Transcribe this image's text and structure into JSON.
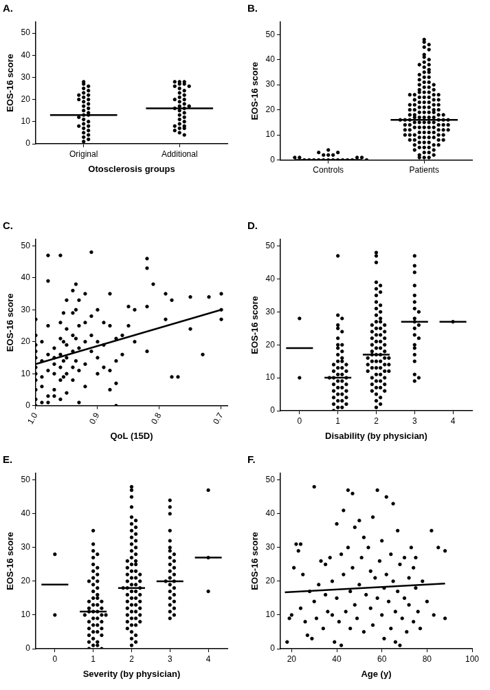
{
  "chart_data": [
    {
      "type": "strip",
      "title": "A.",
      "x_label": "Otosclerosis groups",
      "y_label": "EOS-16 score",
      "categories": [
        "Original",
        "Additional"
      ],
      "values": [
        [
          28,
          27,
          26,
          25,
          24,
          23,
          22,
          21,
          20,
          20,
          19,
          18,
          17,
          16,
          15,
          14,
          13,
          13,
          12,
          11,
          10,
          9,
          8,
          8,
          7,
          6,
          5,
          4,
          3,
          2,
          1,
          22
        ],
        [
          28,
          28,
          28,
          27,
          27,
          26,
          26,
          25,
          24,
          23,
          22,
          21,
          20,
          20,
          19,
          18,
          17,
          16,
          16,
          15,
          14,
          13,
          12,
          11,
          10,
          9,
          8,
          8,
          7,
          7,
          6,
          5,
          4,
          17
        ]
      ],
      "medians": [
        13,
        16
      ],
      "color": "#000000",
      "grid": false,
      "ylim": [
        0,
        55
      ],
      "yticks": [
        0,
        10,
        20,
        30,
        40,
        50
      ]
    },
    {
      "type": "strip",
      "title": "B.",
      "y_label": "EOS-16 score",
      "categories": [
        "Controls",
        "Patients"
      ],
      "values": [
        [
          0,
          0,
          0,
          0,
          0,
          0,
          0,
          0,
          0,
          0,
          0,
          1,
          1,
          1,
          1,
          2,
          2,
          2,
          3,
          3,
          4,
          0
        ],
        [
          48,
          47,
          46,
          45,
          44,
          42,
          41,
          40,
          39,
          38,
          38,
          37,
          36,
          35,
          35,
          34,
          33,
          33,
          32,
          31,
          31,
          30,
          30,
          29,
          29,
          28,
          28,
          27,
          27,
          27,
          26,
          26,
          26,
          26,
          25,
          25,
          25,
          24,
          24,
          24,
          23,
          23,
          23,
          22,
          22,
          22,
          22,
          21,
          21,
          21,
          20,
          20,
          20,
          20,
          19,
          19,
          19,
          19,
          18,
          18,
          18,
          18,
          17,
          17,
          17,
          17,
          17,
          16,
          16,
          16,
          16,
          16,
          16,
          15,
          15,
          15,
          15,
          15,
          14,
          14,
          14,
          14,
          14,
          13,
          13,
          13,
          13,
          13,
          12,
          12,
          12,
          12,
          12,
          11,
          11,
          11,
          11,
          10,
          10,
          10,
          10,
          10,
          9,
          9,
          9,
          9,
          8,
          8,
          8,
          8,
          7,
          7,
          7,
          6,
          6,
          6,
          5,
          5,
          5,
          4,
          4,
          3,
          3,
          2,
          2,
          1,
          1,
          1
        ]
      ],
      "medians": [
        0,
        16
      ],
      "color": "#000000",
      "grid": false,
      "ylim": [
        0,
        55
      ],
      "yticks": [
        0,
        10,
        20,
        30,
        40,
        50
      ]
    },
    {
      "type": "scatter",
      "title": "C.",
      "x_label": "QoL (15D)",
      "y_label": "EOS-16 score",
      "x": [
        1.0,
        1.0,
        1.0,
        1.0,
        1.0,
        1.0,
        1.0,
        1.0,
        1.0,
        1.0,
        1.0,
        0.99,
        0.99,
        0.99,
        0.99,
        0.99,
        0.98,
        0.98,
        0.98,
        0.98,
        0.98,
        0.98,
        0.98,
        0.97,
        0.97,
        0.97,
        0.97,
        0.97,
        0.97,
        0.96,
        0.96,
        0.96,
        0.96,
        0.96,
        0.96,
        0.96,
        0.955,
        0.955,
        0.955,
        0.955,
        0.95,
        0.95,
        0.95,
        0.95,
        0.95,
        0.95,
        0.94,
        0.94,
        0.94,
        0.94,
        0.94,
        0.94,
        0.935,
        0.935,
        0.935,
        0.935,
        0.93,
        0.93,
        0.93,
        0.93,
        0.93,
        0.92,
        0.92,
        0.92,
        0.92,
        0.92,
        0.91,
        0.91,
        0.91,
        0.91,
        0.9,
        0.9,
        0.9,
        0.9,
        0.89,
        0.89,
        0.89,
        0.88,
        0.88,
        0.88,
        0.88,
        0.87,
        0.87,
        0.87,
        0.87,
        0.86,
        0.86,
        0.85,
        0.85,
        0.84,
        0.84,
        0.82,
        0.82,
        0.82,
        0.82,
        0.81,
        0.79,
        0.79,
        0.78,
        0.78,
        0.77,
        0.75,
        0.75,
        0.73,
        0.72,
        0.7,
        0.7,
        0.7
      ],
      "values": [
        27,
        22,
        19,
        17,
        15,
        12,
        10,
        8,
        5,
        2,
        0,
        20,
        14,
        9,
        6,
        1,
        47,
        39,
        25,
        16,
        11,
        3,
        1,
        18,
        15,
        13,
        10,
        5,
        3,
        47,
        26,
        21,
        16,
        12,
        8,
        2,
        29,
        20,
        14,
        9,
        33,
        24,
        19,
        15,
        10,
        4,
        36,
        29,
        22,
        17,
        12,
        8,
        38,
        30,
        21,
        14,
        33,
        25,
        18,
        11,
        1,
        35,
        26,
        20,
        13,
        6,
        48,
        28,
        22,
        17,
        30,
        20,
        15,
        10,
        26,
        19,
        12,
        35,
        25,
        11,
        5,
        21,
        14,
        7,
        0,
        22,
        16,
        31,
        25,
        30,
        20,
        46,
        43,
        31,
        17,
        38,
        35,
        27,
        33,
        9,
        9,
        34,
        24,
        16,
        34,
        35,
        30,
        27
      ],
      "fit": {
        "x": [
          1.0,
          0.7
        ],
        "y": [
          13,
          30
        ]
      },
      "color": "#000000",
      "grid": false,
      "xlim": [
        1.0,
        0.69
      ],
      "xticks": [
        {
          "value": 1.0,
          "label": "1.0"
        },
        {
          "value": 0.9,
          "label": "0.9"
        },
        {
          "value": 0.8,
          "label": "0.8"
        },
        {
          "value": 0.7,
          "label": "0.7"
        }
      ],
      "ylim": [
        0,
        52
      ],
      "yticks": [
        0,
        10,
        20,
        30,
        40,
        50
      ]
    },
    {
      "type": "strip",
      "title": "D.",
      "x_label": "Disability (by physician)",
      "y_label": "EOS-16 score",
      "categories": [
        "0",
        "1",
        "2",
        "3",
        "4"
      ],
      "values": [
        [
          28,
          10
        ],
        [
          47,
          29,
          28,
          26,
          25,
          24,
          22,
          20,
          20,
          19,
          18,
          17,
          16,
          15,
          15,
          14,
          14,
          13,
          13,
          12,
          12,
          11,
          11,
          10,
          10,
          10,
          9,
          9,
          8,
          8,
          7,
          7,
          6,
          6,
          5,
          5,
          4,
          4,
          3,
          3,
          2,
          2,
          1,
          1,
          0
        ],
        [
          48,
          47,
          45,
          39,
          38,
          37,
          36,
          35,
          33,
          32,
          31,
          30,
          29,
          28,
          27,
          27,
          26,
          26,
          25,
          25,
          24,
          24,
          23,
          23,
          22,
          22,
          21,
          21,
          20,
          20,
          19,
          19,
          18,
          18,
          17,
          17,
          17,
          16,
          16,
          16,
          15,
          15,
          15,
          14,
          14,
          14,
          13,
          13,
          13,
          12,
          12,
          12,
          11,
          11,
          10,
          10,
          9,
          9,
          8,
          8,
          7,
          7,
          6,
          6,
          5,
          4,
          3,
          2,
          1
        ],
        [
          47,
          44,
          42,
          38,
          35,
          33,
          31,
          30,
          28,
          27,
          26,
          25,
          23,
          22,
          20,
          19,
          17,
          15,
          11,
          10,
          9
        ],
        [
          27
        ]
      ],
      "medians": [
        19,
        10,
        17,
        27,
        27
      ],
      "color": "#000000",
      "grid": false,
      "ylim": [
        0,
        52
      ],
      "yticks": [
        0,
        10,
        20,
        30,
        40,
        50
      ]
    },
    {
      "type": "strip",
      "title": "E.",
      "x_label": "Severity (by physician)",
      "y_label": "EOS-16 score",
      "categories": [
        "0",
        "1",
        "2",
        "3",
        "4"
      ],
      "values": [
        [
          28,
          10
        ],
        [
          35,
          31,
          29,
          28,
          27,
          25,
          24,
          23,
          22,
          21,
          20,
          20,
          19,
          18,
          17,
          16,
          15,
          15,
          14,
          14,
          13,
          13,
          12,
          12,
          11,
          11,
          11,
          10,
          10,
          10,
          9,
          9,
          8,
          8,
          7,
          7,
          6,
          6,
          5,
          5,
          4,
          4,
          3,
          2,
          2,
          1,
          1,
          0,
          0
        ],
        [
          48,
          47,
          45,
          42,
          39,
          38,
          37,
          36,
          35,
          34,
          33,
          32,
          31,
          30,
          29,
          28,
          27,
          26,
          26,
          25,
          25,
          24,
          23,
          23,
          22,
          22,
          21,
          21,
          20,
          20,
          19,
          19,
          18,
          18,
          18,
          17,
          17,
          16,
          16,
          15,
          15,
          14,
          14,
          13,
          13,
          12,
          12,
          11,
          11,
          10,
          10,
          9,
          9,
          8,
          8,
          7,
          7,
          6,
          5,
          4,
          3,
          2,
          1
        ],
        [
          44,
          42,
          40,
          35,
          32,
          30,
          29,
          28,
          27,
          26,
          25,
          24,
          23,
          22,
          21,
          20,
          20,
          19,
          18,
          17,
          16,
          15,
          14,
          13,
          12,
          11,
          10,
          9
        ],
        [
          47,
          27,
          17
        ]
      ],
      "medians": [
        19,
        11,
        18,
        20,
        27
      ],
      "color": "#000000",
      "grid": false,
      "ylim": [
        0,
        52
      ],
      "yticks": [
        0,
        10,
        20,
        30,
        40,
        50
      ]
    },
    {
      "type": "scatter",
      "title": "F.",
      "x_label": "Age (y)",
      "y_label": "EOS-16 score",
      "x": [
        18,
        19,
        20,
        21,
        22,
        23,
        24,
        24,
        25,
        26,
        27,
        28,
        29,
        30,
        30,
        31,
        32,
        33,
        34,
        35,
        35,
        36,
        37,
        38,
        38,
        39,
        40,
        40,
        41,
        42,
        42,
        43,
        43,
        44,
        45,
        45,
        46,
        46,
        47,
        47,
        48,
        48,
        49,
        50,
        50,
        51,
        52,
        52,
        53,
        54,
        55,
        55,
        56,
        56,
        57,
        58,
        58,
        59,
        60,
        60,
        61,
        61,
        62,
        62,
        63,
        64,
        64,
        65,
        65,
        66,
        66,
        67,
        67,
        68,
        68,
        69,
        70,
        70,
        71,
        72,
        72,
        73,
        74,
        74,
        75,
        75,
        76,
        77,
        78,
        80,
        82,
        83,
        85,
        88,
        88
      ],
      "values": [
        2,
        9,
        10,
        24,
        31,
        29,
        31,
        12,
        22,
        8,
        4,
        17,
        3,
        48,
        14,
        9,
        19,
        26,
        6,
        16,
        25,
        11,
        27,
        10,
        20,
        2,
        37,
        15,
        8,
        28,
        1,
        41,
        22,
        11,
        47,
        30,
        17,
        6,
        46,
        24,
        36,
        13,
        9,
        38,
        19,
        27,
        5,
        33,
        16,
        30,
        12,
        23,
        39,
        7,
        21,
        47,
        15,
        26,
        10,
        32,
        18,
        3,
        45,
        22,
        14,
        28,
        6,
        43,
        20,
        11,
        2,
        35,
        17,
        1,
        25,
        9,
        27,
        15,
        5,
        21,
        13,
        30,
        8,
        24,
        27,
        18,
        11,
        6,
        20,
        14,
        35,
        10,
        30,
        29,
        9
      ],
      "fit": {
        "x": [
          17,
          88
        ],
        "y": [
          16.7,
          19.3
        ]
      },
      "color": "#000000",
      "grid": false,
      "xlim": [
        15,
        100
      ],
      "xticks": [
        20,
        40,
        60,
        80,
        100
      ],
      "ylim": [
        0,
        52
      ],
      "yticks": [
        0,
        10,
        20,
        30,
        40,
        50
      ]
    }
  ]
}
